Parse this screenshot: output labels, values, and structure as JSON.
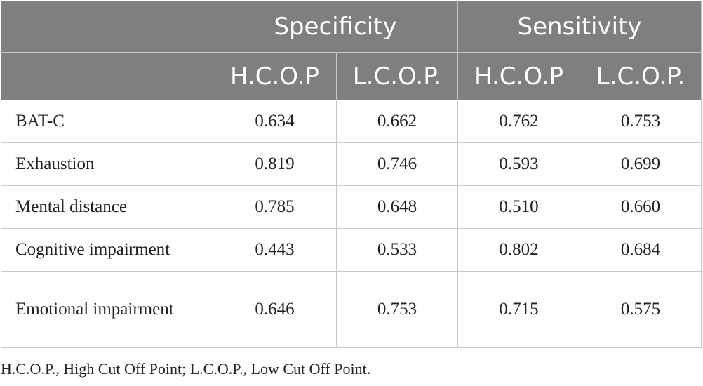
{
  "table": {
    "group_headers": [
      "",
      "Specificity",
      "Sensitivity"
    ],
    "sub_headers": [
      "",
      "H.C.O.P",
      "L.C.O.P.",
      "H.C.O.P",
      "L.C.O.P."
    ],
    "rows": [
      {
        "label": "BAT-C",
        "values": [
          "0.634",
          "0.662",
          "0.762",
          "0.753"
        ]
      },
      {
        "label": "Exhaustion",
        "values": [
          "0.819",
          "0.746",
          "0.593",
          "0.699"
        ]
      },
      {
        "label": "Mental distance",
        "values": [
          "0.785",
          "0.648",
          "0.510",
          "0.660"
        ]
      },
      {
        "label": "Cognitive impairment",
        "values": [
          "0.443",
          "0.533",
          "0.802",
          "0.684"
        ]
      },
      {
        "label": "Emotional impairment",
        "values": [
          "0.646",
          "0.753",
          "0.715",
          "0.575"
        ]
      }
    ]
  },
  "footnote": "H.C.O.P., High Cut Off Point; L.C.O.P., Low Cut Off Point."
}
